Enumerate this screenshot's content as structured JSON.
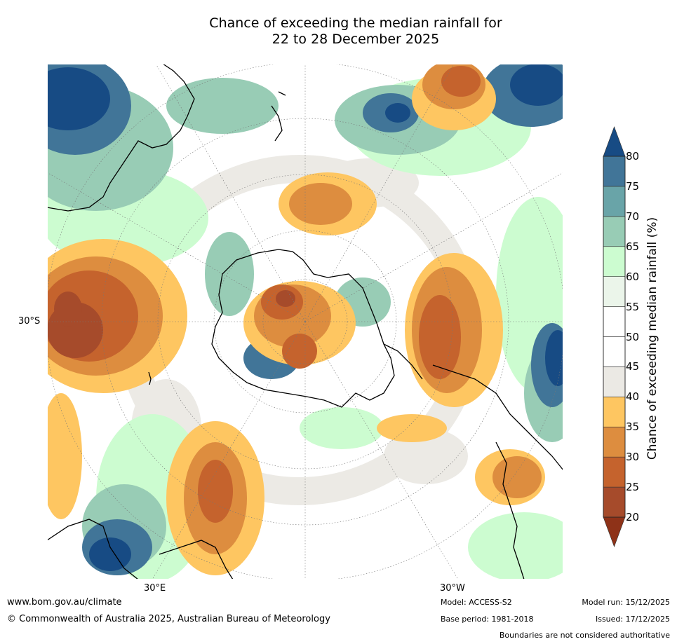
{
  "title": {
    "line1": "Chance of exceeding the median rainfall for",
    "line2": "22 to 28 December 2025"
  },
  "map_labels": {
    "lat_left": "30°S",
    "lon_bottom_left": "30°E",
    "lon_bottom_right": "30°W"
  },
  "legend": {
    "label": "Chance of exceeding median rainfall (%)",
    "ticks": [
      "20",
      "25",
      "30",
      "35",
      "40",
      "45",
      "50",
      "55",
      "60",
      "65",
      "70",
      "75",
      "80"
    ],
    "bins": [
      {
        "range": "<20",
        "color": "#8e3218"
      },
      {
        "range": "20-25",
        "color": "#a64b2b"
      },
      {
        "range": "25-30",
        "color": "#c5632d"
      },
      {
        "range": "30-35",
        "color": "#dd8d3f"
      },
      {
        "range": "35-40",
        "color": "#fec661"
      },
      {
        "range": "40-45",
        "color": "#ebe9e4"
      },
      {
        "range": "45-50",
        "color": "#ffffff"
      },
      {
        "range": "50-55",
        "color": "#ffffff"
      },
      {
        "range": "55-60",
        "color": "#ebf5ea"
      },
      {
        "range": "60-65",
        "color": "#ccfcd0"
      },
      {
        "range": "65-70",
        "color": "#98ccb5"
      },
      {
        "range": "70-75",
        "color": "#69a4a8"
      },
      {
        "range": "75-80",
        "color": "#417598"
      },
      {
        "range": ">80",
        "color": "#174b84"
      }
    ]
  },
  "footer": {
    "url": "www.bom.gov.au/climate",
    "copyright": "© Commonwealth of Australia 2025, Australian Bureau of Meteorology",
    "model": "Model: ACCESS-S2",
    "base_period": "Base period: 1981-2018",
    "model_run": "Model run: 15/12/2025",
    "issued": "Issued: 17/12/2025",
    "disclaimer": "Boundaries are not considered authoritative"
  }
}
